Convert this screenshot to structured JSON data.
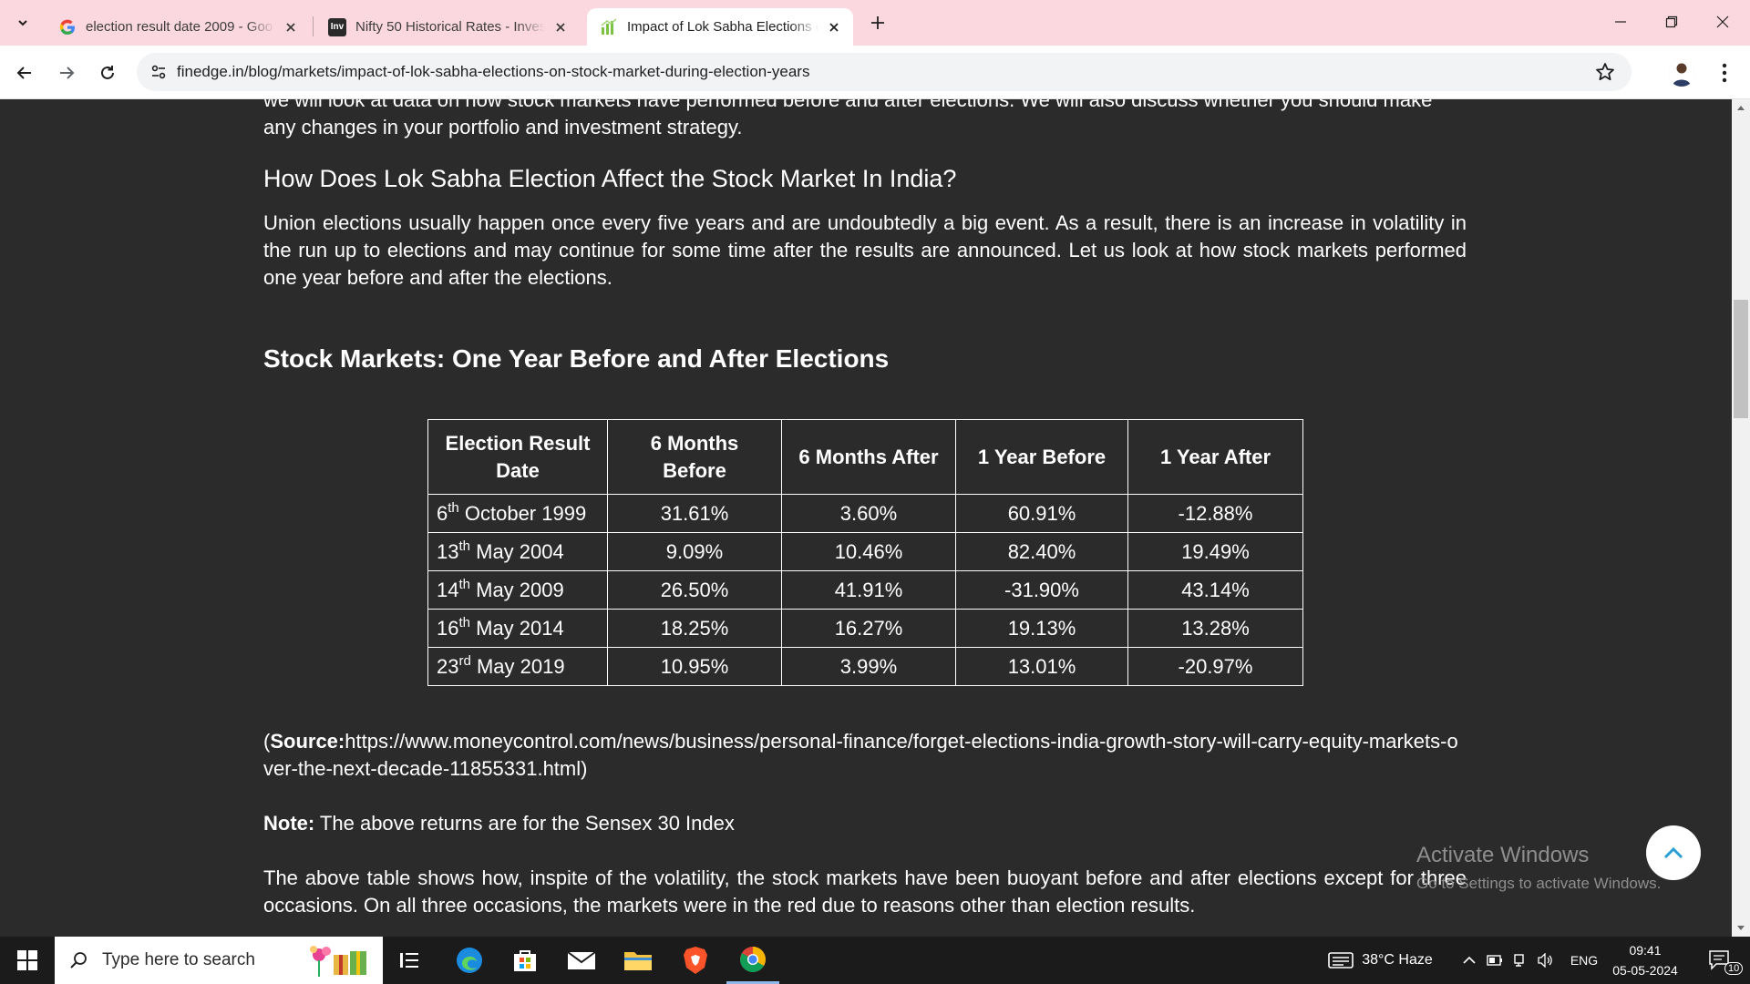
{
  "browser": {
    "tabs": [
      {
        "title": "election result date 2009 - Goo",
        "favicon": "google-g-icon"
      },
      {
        "title": "Nifty 50 Historical Rates - Inves",
        "favicon": "investing-com-icon"
      },
      {
        "title": "Impact of Lok Sabha Elections o",
        "favicon": "finedge-icon"
      }
    ],
    "active_tab": 2,
    "url": "finedge.in/blog/markets/impact-of-lok-sabha-elections-on-stock-market-during-election-years",
    "colors": {
      "tabstrip": "#fbd8e0",
      "toolbar": "#ffffff",
      "omnibox": "#f1f3f4"
    }
  },
  "article": {
    "intro_cut": "we will look at data on how stock markets have performed before and after elections. We will also discuss whether you should make",
    "intro_end": "any changes in your portfolio and investment strategy.",
    "heading": "How Does Lok Sabha Election Affect the Stock Market In India?",
    "para1": "Union elections usually happen once every five years and are undoubtedly a big event. As a result, there is an increase in volatility in the run up to elections and may continue for some time after the results are announced. Let us look at how stock markets performed one year before and after the elections.",
    "table_heading": "Stock Markets: One Year Before and After Elections",
    "table": {
      "headers": [
        "Election Result Date",
        "6 Months Before",
        "6 Months After",
        "1 Year Before",
        "1 Year After"
      ],
      "rows": [
        {
          "day": "6",
          "suffix": "th",
          "rest": " October 1999",
          "cells": [
            "31.61%",
            "3.60%",
            "60.91%",
            "-12.88%"
          ]
        },
        {
          "day": "13",
          "suffix": "th",
          "rest": " May 2004",
          "cells": [
            "9.09%",
            "10.46%",
            "82.40%",
            "19.49%"
          ]
        },
        {
          "day": "14",
          "suffix": "th",
          "rest": " May 2009",
          "cells": [
            "26.50%",
            "41.91%",
            "-31.90%",
            "43.14%"
          ]
        },
        {
          "day": "16",
          "suffix": "th",
          "rest": " May 2014",
          "cells": [
            "18.25%",
            "16.27%",
            "19.13%",
            "13.28%"
          ]
        },
        {
          "day": "23",
          "suffix": "rd",
          "rest": " May 2019",
          "cells": [
            "10.95%",
            "3.99%",
            "13.01%",
            "-20.97%"
          ]
        }
      ]
    },
    "source_label": "Source:",
    "source_prefix": "(",
    "source_url": "https://www.moneycontrol.com/news/business/personal-finance/forget-elections-india-growth-story-will-carry-equity-markets-over-the-next-decade-11855331.html)",
    "note_label": "Note:",
    "note_text": " The above returns are for the Sensex 30 Index",
    "para2": "The above table shows how, inspite of the volatility, the stock markets have been buoyant before and after elections except for three occasions. On all three occasions, the markets were in the red due to reasons other than election results."
  },
  "watermark": {
    "title": "Activate Windows",
    "subtitle": "Go to Settings to activate Windows."
  },
  "taskbar": {
    "search_placeholder": "Type here to search",
    "weather": "38°C  Haze",
    "language": "ENG",
    "time": "09:41",
    "date": "05-05-2024",
    "notification_count": "10"
  }
}
